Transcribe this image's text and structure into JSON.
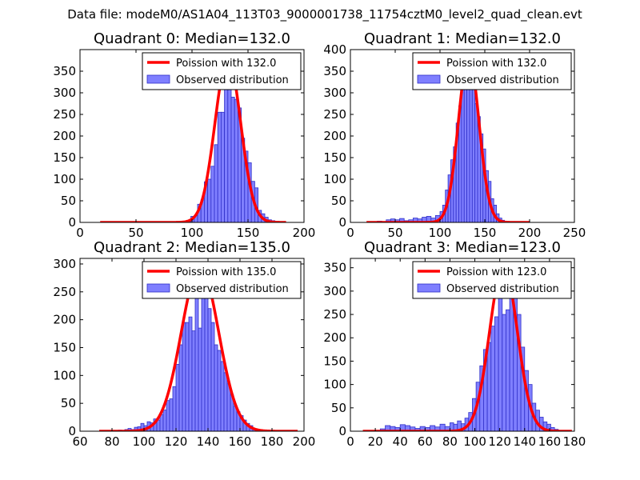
{
  "figure_title": "Data file: modeM0/AS1A04_113T03_9000001738_11754cztM0_level2_quad_clean.evt",
  "colors": {
    "fit_line": "#ff0000",
    "hist_fill": "#7f7fff",
    "hist_edge": "#2f2fc8"
  },
  "chart_data": [
    {
      "type": "bar",
      "title": "Quadrant 0: Median=132.0",
      "xlim": [
        0,
        200
      ],
      "ylim": [
        0,
        400
      ],
      "xticks": [
        0,
        50,
        100,
        150,
        200
      ],
      "yticks": [
        0,
        50,
        100,
        150,
        200,
        250,
        300,
        350
      ],
      "legend": {
        "placement": "top-right",
        "line_label": "Poission with 132.0",
        "bar_label": "Observed distribution"
      },
      "bins": [
        [
          87,
          90,
          1
        ],
        [
          90,
          93,
          3
        ],
        [
          93,
          96,
          0
        ],
        [
          96,
          99,
          2
        ],
        [
          99,
          102,
          14
        ],
        [
          102,
          105,
          16
        ],
        [
          105,
          108,
          42
        ],
        [
          108,
          111,
          52
        ],
        [
          111,
          114,
          94
        ],
        [
          114,
          117,
          100
        ],
        [
          117,
          120,
          130
        ],
        [
          120,
          123,
          180
        ],
        [
          123,
          126,
          255
        ],
        [
          126,
          129,
          255
        ],
        [
          129,
          132,
          355
        ],
        [
          132,
          135,
          330
        ],
        [
          135,
          138,
          290
        ],
        [
          138,
          141,
          285
        ],
        [
          141,
          144,
          265
        ],
        [
          144,
          147,
          195
        ],
        [
          147,
          150,
          165
        ],
        [
          150,
          153,
          138
        ],
        [
          153,
          156,
          95
        ],
        [
          156,
          159,
          80
        ],
        [
          159,
          162,
          28
        ],
        [
          162,
          165,
          20
        ],
        [
          165,
          168,
          12
        ],
        [
          168,
          171,
          6
        ],
        [
          171,
          174,
          4
        ]
      ],
      "fit": {
        "mean": 132.0,
        "amplitude": 380,
        "x_range": [
          18,
          184
        ]
      }
    },
    {
      "type": "bar",
      "title": "Quadrant 1: Median=132.0",
      "xlim": [
        0,
        250
      ],
      "ylim": [
        0,
        400
      ],
      "xticks": [
        0,
        50,
        100,
        150,
        200,
        250
      ],
      "yticks": [
        0,
        50,
        100,
        150,
        200,
        250,
        300,
        350,
        400
      ],
      "legend": {
        "placement": "top-right",
        "line_label": "Poission with 132.0",
        "bar_label": "Observed distribution"
      },
      "bins": [
        [
          25,
          30,
          1
        ],
        [
          30,
          35,
          3
        ],
        [
          35,
          40,
          2
        ],
        [
          40,
          45,
          6
        ],
        [
          45,
          50,
          8
        ],
        [
          50,
          55,
          6
        ],
        [
          55,
          60,
          9
        ],
        [
          60,
          65,
          4
        ],
        [
          65,
          70,
          6
        ],
        [
          70,
          75,
          10
        ],
        [
          75,
          80,
          8
        ],
        [
          80,
          85,
          12
        ],
        [
          85,
          90,
          14
        ],
        [
          90,
          95,
          10
        ],
        [
          95,
          100,
          16
        ],
        [
          100,
          103,
          25
        ],
        [
          103,
          106,
          40
        ],
        [
          106,
          109,
          75
        ],
        [
          109,
          112,
          110
        ],
        [
          112,
          115,
          145
        ],
        [
          115,
          118,
          175
        ],
        [
          118,
          121,
          230
        ],
        [
          121,
          124,
          270
        ],
        [
          124,
          127,
          335
        ],
        [
          127,
          130,
          355
        ],
        [
          130,
          133,
          380
        ],
        [
          133,
          136,
          360
        ],
        [
          136,
          139,
          310
        ],
        [
          139,
          142,
          275
        ],
        [
          142,
          145,
          245
        ],
        [
          145,
          148,
          205
        ],
        [
          148,
          151,
          170
        ],
        [
          151,
          154,
          120
        ],
        [
          154,
          157,
          95
        ],
        [
          157,
          160,
          55
        ],
        [
          160,
          163,
          40
        ],
        [
          163,
          166,
          20
        ],
        [
          166,
          169,
          10
        ],
        [
          169,
          172,
          5
        ],
        [
          172,
          175,
          2
        ]
      ],
      "fit": {
        "mean": 132.0,
        "amplitude": 385,
        "x_range": [
          18,
          200
        ]
      }
    },
    {
      "type": "bar",
      "title": "Quadrant 2: Median=135.0",
      "xlim": [
        60,
        200
      ],
      "ylim": [
        0,
        310
      ],
      "xticks": [
        60,
        80,
        100,
        120,
        140,
        160,
        180,
        200
      ],
      "yticks": [
        0,
        50,
        100,
        150,
        200,
        250,
        300
      ],
      "legend": {
        "placement": "top-right",
        "line_label": "Poission with 135.0",
        "bar_label": "Observed distribution"
      },
      "bins": [
        [
          84,
          86,
          2
        ],
        [
          86,
          88,
          1
        ],
        [
          88,
          90,
          3
        ],
        [
          90,
          92,
          5
        ],
        [
          92,
          94,
          3
        ],
        [
          94,
          96,
          7
        ],
        [
          96,
          98,
          8
        ],
        [
          98,
          100,
          14
        ],
        [
          100,
          102,
          10
        ],
        [
          102,
          104,
          17
        ],
        [
          104,
          106,
          15
        ],
        [
          106,
          108,
          22
        ],
        [
          108,
          110,
          20
        ],
        [
          110,
          112,
          30
        ],
        [
          112,
          114,
          38
        ],
        [
          114,
          116,
          55
        ],
        [
          116,
          118,
          58
        ],
        [
          118,
          120,
          80
        ],
        [
          120,
          122,
          120
        ],
        [
          122,
          124,
          155
        ],
        [
          124,
          126,
          195
        ],
        [
          126,
          128,
          195
        ],
        [
          128,
          130,
          205
        ],
        [
          130,
          132,
          180
        ],
        [
          132,
          134,
          290
        ],
        [
          134,
          136,
          185
        ],
        [
          136,
          138,
          240
        ],
        [
          138,
          140,
          295
        ],
        [
          140,
          142,
          220
        ],
        [
          142,
          144,
          195
        ],
        [
          144,
          146,
          155
        ],
        [
          146,
          148,
          145
        ],
        [
          148,
          150,
          125
        ],
        [
          150,
          152,
          105
        ],
        [
          152,
          154,
          85
        ],
        [
          154,
          156,
          65
        ],
        [
          156,
          158,
          45
        ],
        [
          158,
          160,
          35
        ],
        [
          160,
          162,
          28
        ],
        [
          162,
          164,
          20
        ],
        [
          164,
          166,
          14
        ],
        [
          166,
          168,
          10
        ],
        [
          168,
          170,
          5
        ],
        [
          172,
          174,
          3
        ]
      ],
      "fit": {
        "mean": 135.0,
        "amplitude": 295,
        "x_range": [
          72,
          196
        ]
      }
    },
    {
      "type": "bar",
      "title": "Quadrant 3: Median=123.0",
      "xlim": [
        0,
        180
      ],
      "ylim": [
        0,
        370
      ],
      "xticks": [
        0,
        20,
        40,
        60,
        80,
        100,
        120,
        140,
        160,
        180
      ],
      "yticks": [
        0,
        50,
        100,
        150,
        200,
        250,
        300,
        350
      ],
      "legend": {
        "placement": "top-right",
        "line_label": "Poission with 123.0",
        "bar_label": "Observed distribution"
      },
      "bins": [
        [
          20,
          24,
          2
        ],
        [
          24,
          28,
          5
        ],
        [
          28,
          32,
          12
        ],
        [
          32,
          36,
          10
        ],
        [
          36,
          40,
          8
        ],
        [
          40,
          44,
          14
        ],
        [
          44,
          48,
          12
        ],
        [
          48,
          52,
          9
        ],
        [
          52,
          56,
          6
        ],
        [
          56,
          60,
          10
        ],
        [
          60,
          64,
          8
        ],
        [
          64,
          68,
          12
        ],
        [
          68,
          72,
          9
        ],
        [
          72,
          76,
          15
        ],
        [
          76,
          80,
          10
        ],
        [
          80,
          83,
          18
        ],
        [
          83,
          86,
          15
        ],
        [
          86,
          89,
          22
        ],
        [
          89,
          92,
          16
        ],
        [
          92,
          95,
          28
        ],
        [
          95,
          98,
          40
        ],
        [
          98,
          101,
          70
        ],
        [
          101,
          104,
          105
        ],
        [
          104,
          107,
          140
        ],
        [
          107,
          110,
          175
        ],
        [
          110,
          113,
          190
        ],
        [
          113,
          116,
          225
        ],
        [
          116,
          119,
          245
        ],
        [
          119,
          122,
          330
        ],
        [
          122,
          125,
          250
        ],
        [
          125,
          128,
          260
        ],
        [
          128,
          131,
          300
        ],
        [
          131,
          134,
          320
        ],
        [
          134,
          137,
          250
        ],
        [
          137,
          140,
          180
        ],
        [
          140,
          143,
          130
        ],
        [
          143,
          146,
          100
        ],
        [
          146,
          149,
          60
        ],
        [
          149,
          152,
          45
        ],
        [
          152,
          155,
          30
        ],
        [
          155,
          158,
          20
        ],
        [
          158,
          161,
          15
        ],
        [
          161,
          164,
          8
        ],
        [
          164,
          167,
          4
        ]
      ],
      "fit": {
        "mean": 123.0,
        "amplitude": 355,
        "x_range": [
          10,
          178
        ]
      }
    }
  ]
}
